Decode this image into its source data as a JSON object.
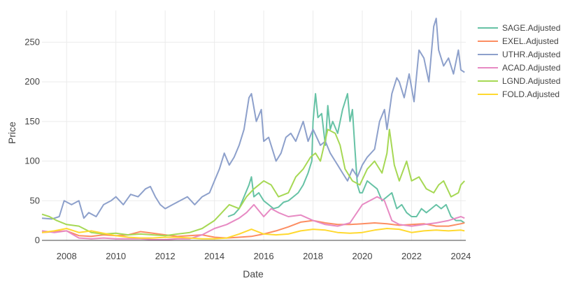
{
  "chart_data": {
    "type": "line",
    "title": "",
    "xlabel": "Date",
    "ylabel": "Price",
    "xlim": [
      2007.0,
      2024.2
    ],
    "ylim": [
      0,
      290
    ],
    "x_ticks": [
      2008,
      2010,
      2012,
      2014,
      2016,
      2018,
      2020,
      2022,
      2024
    ],
    "x_tick_labels": [
      "2008",
      "2010",
      "2012",
      "2014",
      "2016",
      "2018",
      "2020",
      "2022",
      "2024"
    ],
    "y_ticks": [
      0,
      50,
      100,
      150,
      200,
      250
    ],
    "y_tick_labels": [
      "0",
      "50",
      "100",
      "150",
      "200",
      "250"
    ],
    "grid": true,
    "legend_position": "top-right",
    "series": [
      {
        "name": "SAGE.Adjusted",
        "color": "#66c2a5",
        "x": [
          2014.55,
          2014.8,
          2015.0,
          2015.2,
          2015.4,
          2015.5,
          2015.6,
          2015.8,
          2016.0,
          2016.2,
          2016.4,
          2016.6,
          2016.8,
          2017.0,
          2017.2,
          2017.4,
          2017.6,
          2017.8,
          2017.95,
          2018.0,
          2018.1,
          2018.2,
          2018.35,
          2018.5,
          2018.6,
          2018.7,
          2018.8,
          2019.0,
          2019.2,
          2019.4,
          2019.5,
          2019.6,
          2019.7,
          2019.8,
          2019.9,
          2020.0,
          2020.2,
          2020.4,
          2020.6,
          2020.8,
          2021.0,
          2021.2,
          2021.4,
          2021.6,
          2021.8,
          2022.0,
          2022.2,
          2022.4,
          2022.6,
          2022.8,
          2023.0,
          2023.2,
          2023.4,
          2023.6,
          2023.8,
          2024.0,
          2024.15
        ],
        "y": [
          30,
          33,
          40,
          55,
          70,
          80,
          55,
          60,
          50,
          45,
          40,
          42,
          48,
          50,
          55,
          60,
          70,
          85,
          100,
          150,
          185,
          155,
          160,
          120,
          170,
          140,
          150,
          135,
          165,
          185,
          150,
          165,
          115,
          70,
          60,
          60,
          75,
          70,
          65,
          50,
          55,
          60,
          40,
          45,
          35,
          30,
          30,
          40,
          35,
          40,
          45,
          40,
          45,
          30,
          25,
          25,
          22
        ]
      },
      {
        "name": "EXEL.Adjusted",
        "color": "#fc8d62",
        "x": [
          2007.0,
          2007.5,
          2008.0,
          2008.5,
          2009.0,
          2009.5,
          2010.0,
          2010.5,
          2011.0,
          2011.5,
          2012.0,
          2012.5,
          2013.0,
          2013.5,
          2014.0,
          2014.5,
          2015.0,
          2015.5,
          2016.0,
          2016.5,
          2017.0,
          2017.5,
          2018.0,
          2018.5,
          2019.0,
          2019.5,
          2020.0,
          2020.5,
          2021.0,
          2021.5,
          2022.0,
          2022.5,
          2023.0,
          2023.5,
          2024.0,
          2024.15
        ],
        "y": [
          10,
          11,
          12,
          6,
          5,
          7,
          6,
          7,
          11,
          9,
          7,
          5,
          6,
          7,
          4,
          3,
          4,
          5,
          8,
          12,
          17,
          23,
          25,
          22,
          20,
          20,
          21,
          22,
          21,
          19,
          20,
          21,
          18,
          18,
          21,
          22
        ]
      },
      {
        "name": "UTHR.Adjusted",
        "color": "#8da0cb",
        "x": [
          2007.0,
          2007.4,
          2007.7,
          2007.9,
          2008.2,
          2008.5,
          2008.7,
          2008.9,
          2009.2,
          2009.5,
          2009.8,
          2010.0,
          2010.3,
          2010.6,
          2010.9,
          2011.2,
          2011.4,
          2011.6,
          2011.8,
          2012.0,
          2012.3,
          2012.6,
          2012.9,
          2013.2,
          2013.5,
          2013.8,
          2014.0,
          2014.2,
          2014.4,
          2014.6,
          2014.8,
          2015.0,
          2015.2,
          2015.4,
          2015.5,
          2015.7,
          2015.9,
          2016.0,
          2016.2,
          2016.5,
          2016.7,
          2016.9,
          2017.1,
          2017.3,
          2017.6,
          2017.8,
          2018.0,
          2018.3,
          2018.5,
          2018.7,
          2018.9,
          2019.0,
          2019.2,
          2019.4,
          2019.6,
          2019.8,
          2020.0,
          2020.2,
          2020.5,
          2020.7,
          2020.9,
          2021.0,
          2021.2,
          2021.4,
          2021.5,
          2021.7,
          2021.9,
          2022.1,
          2022.3,
          2022.5,
          2022.7,
          2022.9,
          2023.0,
          2023.1,
          2023.3,
          2023.5,
          2023.7,
          2023.9,
          2024.0,
          2024.15
        ],
        "y": [
          28,
          27,
          30,
          50,
          45,
          50,
          28,
          35,
          30,
          45,
          50,
          55,
          45,
          58,
          55,
          65,
          68,
          55,
          45,
          40,
          45,
          50,
          55,
          45,
          55,
          60,
          75,
          90,
          110,
          95,
          105,
          120,
          140,
          180,
          185,
          150,
          165,
          125,
          130,
          100,
          110,
          130,
          135,
          125,
          150,
          125,
          140,
          120,
          125,
          110,
          100,
          95,
          85,
          75,
          90,
          80,
          95,
          105,
          115,
          150,
          165,
          140,
          185,
          205,
          200,
          180,
          210,
          175,
          240,
          230,
          200,
          270,
          280,
          240,
          220,
          230,
          210,
          240,
          215,
          212
        ]
      },
      {
        "name": "ACAD.Adjusted",
        "color": "#e78ac3",
        "x": [
          2007.0,
          2007.5,
          2008.0,
          2008.5,
          2009.0,
          2009.5,
          2010.0,
          2010.5,
          2011.0,
          2011.5,
          2012.0,
          2012.5,
          2013.0,
          2013.5,
          2014.0,
          2014.5,
          2015.0,
          2015.3,
          2015.6,
          2016.0,
          2016.3,
          2016.6,
          2017.0,
          2017.5,
          2018.0,
          2018.5,
          2019.0,
          2019.5,
          2020.0,
          2020.3,
          2020.6,
          2020.9,
          2021.2,
          2021.5,
          2022.0,
          2022.5,
          2023.0,
          2023.5,
          2024.0,
          2024.15
        ],
        "y": [
          12,
          10,
          12,
          3,
          2,
          3,
          2,
          2,
          2,
          1,
          1,
          2,
          2,
          7,
          15,
          20,
          28,
          35,
          45,
          30,
          40,
          35,
          30,
          32,
          25,
          20,
          18,
          22,
          45,
          50,
          55,
          50,
          25,
          20,
          18,
          20,
          22,
          25,
          30,
          28
        ]
      },
      {
        "name": "LGND.Adjusted",
        "color": "#a6d854",
        "x": [
          2007.0,
          2007.3,
          2007.6,
          2008.0,
          2008.5,
          2009.0,
          2009.5,
          2010.0,
          2010.5,
          2011.0,
          2011.5,
          2012.0,
          2012.5,
          2013.0,
          2013.5,
          2014.0,
          2014.3,
          2014.6,
          2015.0,
          2015.3,
          2015.6,
          2016.0,
          2016.3,
          2016.6,
          2017.0,
          2017.3,
          2017.6,
          2017.9,
          2018.1,
          2018.3,
          2018.6,
          2018.9,
          2019.1,
          2019.3,
          2019.6,
          2019.9,
          2020.2,
          2020.5,
          2020.8,
          2021.0,
          2021.1,
          2021.3,
          2021.5,
          2021.8,
          2022.0,
          2022.3,
          2022.6,
          2022.9,
          2023.1,
          2023.3,
          2023.6,
          2023.9,
          2024.0,
          2024.15
        ],
        "y": [
          33,
          30,
          25,
          20,
          18,
          10,
          8,
          9,
          7,
          8,
          7,
          6,
          8,
          10,
          15,
          25,
          35,
          45,
          40,
          55,
          65,
          75,
          70,
          55,
          60,
          80,
          90,
          105,
          110,
          100,
          140,
          135,
          120,
          90,
          75,
          70,
          90,
          100,
          85,
          110,
          140,
          95,
          75,
          100,
          75,
          80,
          65,
          60,
          70,
          75,
          55,
          60,
          70,
          75
        ]
      },
      {
        "name": "FOLD.Adjusted",
        "color": "#ffd92f",
        "x": [
          2007.0,
          2007.5,
          2008.0,
          2008.5,
          2009.0,
          2009.5,
          2010.0,
          2010.5,
          2011.0,
          2011.5,
          2012.0,
          2012.5,
          2013.0,
          2013.5,
          2014.0,
          2014.5,
          2015.0,
          2015.5,
          2016.0,
          2016.5,
          2017.0,
          2017.5,
          2018.0,
          2018.5,
          2019.0,
          2019.5,
          2020.0,
          2020.5,
          2021.0,
          2021.5,
          2022.0,
          2022.5,
          2023.0,
          2023.5,
          2024.0,
          2024.15
        ],
        "y": [
          10,
          12,
          15,
          10,
          12,
          9,
          6,
          4,
          3,
          3,
          4,
          4,
          3,
          2,
          2,
          3,
          8,
          14,
          8,
          7,
          8,
          12,
          14,
          13,
          10,
          9,
          10,
          13,
          15,
          14,
          10,
          12,
          13,
          12,
          13,
          12
        ]
      }
    ]
  }
}
